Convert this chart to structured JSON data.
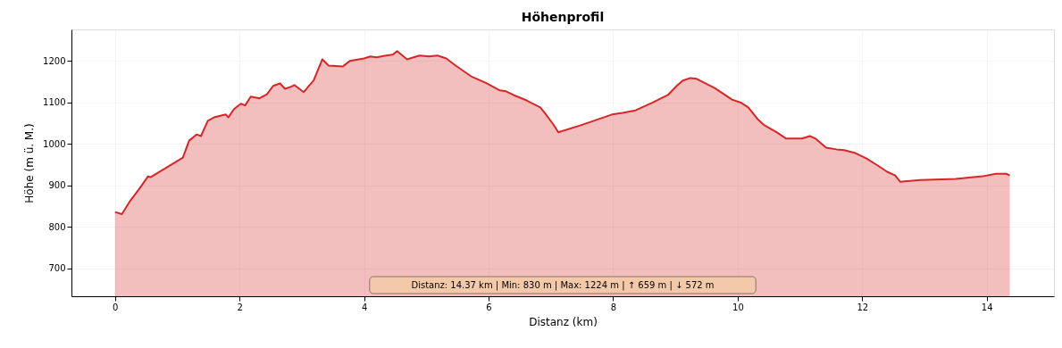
{
  "chart_data": {
    "type": "area",
    "title": "Höhenprofil",
    "xlabel": "Distanz (km)",
    "ylabel": "Höhe (m ü. M.)",
    "xlim": [
      -0.7,
      15.08
    ],
    "ylim": [
      633,
      1276
    ],
    "xticks": [
      0,
      2,
      4,
      6,
      8,
      10,
      12,
      14
    ],
    "yticks": [
      700,
      800,
      900,
      1000,
      1100,
      1200
    ],
    "grid": true,
    "x": [
      0,
      0.11,
      0.23,
      0.4,
      0.53,
      0.57,
      1.09,
      1.19,
      1.31,
      1.38,
      1.49,
      1.59,
      1.78,
      1.82,
      1.91,
      2.02,
      2.09,
      2.18,
      2.32,
      2.44,
      2.54,
      2.65,
      2.73,
      2.83,
      2.88,
      3.03,
      3.19,
      3.33,
      3.43,
      3.66,
      3.77,
      4.0,
      4.1,
      4.2,
      4.35,
      4.46,
      4.53,
      4.69,
      4.89,
      5.04,
      5.18,
      5.32,
      5.47,
      5.72,
      5.97,
      6.18,
      6.28,
      6.4,
      6.61,
      6.83,
      6.9,
      7.04,
      7.12,
      7.48,
      7.98,
      8.15,
      8.36,
      8.62,
      8.88,
      9.02,
      9.12,
      9.24,
      9.34,
      9.63,
      9.91,
      10.06,
      10.17,
      10.32,
      10.43,
      10.63,
      10.78,
      11.03,
      11.16,
      11.25,
      11.42,
      11.59,
      11.71,
      11.89,
      12.07,
      12.25,
      12.4,
      12.53,
      12.61,
      12.93,
      13.5,
      13.93,
      14.15,
      14.32,
      14.37
    ],
    "series": [
      {
        "color": "#d62728",
        "values": [
          836,
          831,
          860,
          894,
          922,
          920,
          967,
          1008,
          1023,
          1019,
          1056,
          1064,
          1071,
          1064,
          1084,
          1097,
          1093,
          1114,
          1110,
          1120,
          1140,
          1146,
          1133,
          1138,
          1142,
          1125,
          1153,
          1204,
          1189,
          1187,
          1200,
          1206,
          1211,
          1209,
          1213,
          1215,
          1224,
          1204,
          1213,
          1211,
          1213,
          1206,
          1189,
          1163,
          1146,
          1129,
          1127,
          1118,
          1105,
          1088,
          1075,
          1047,
          1028,
          1045,
          1071,
          1075,
          1081,
          1099,
          1118,
          1140,
          1153,
          1159,
          1157,
          1135,
          1107,
          1099,
          1088,
          1060,
          1045,
          1028,
          1013,
          1013,
          1019,
          1013,
          991,
          987,
          985,
          978,
          965,
          948,
          933,
          924,
          909,
          913,
          916,
          922,
          928,
          928,
          924
        ]
      }
    ],
    "annotations": [
      "Distanz: 14.37 km | Min: 830 m | Max: 1224 m | ↑ 659 m | ↓ 572 m"
    ]
  }
}
